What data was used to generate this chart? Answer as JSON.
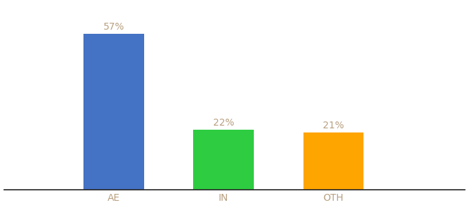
{
  "categories": [
    "AE",
    "IN",
    "OTH"
  ],
  "values": [
    57,
    22,
    21
  ],
  "bar_colors": [
    "#4472C4",
    "#2ECC40",
    "#FFA500"
  ],
  "value_labels": [
    "57%",
    "22%",
    "21%"
  ],
  "ylim": [
    0,
    68
  ],
  "background_color": "#ffffff",
  "label_color": "#b8a080",
  "tick_color": "#b8a080",
  "bar_width": 0.55,
  "label_fontsize": 10,
  "tick_fontsize": 10
}
